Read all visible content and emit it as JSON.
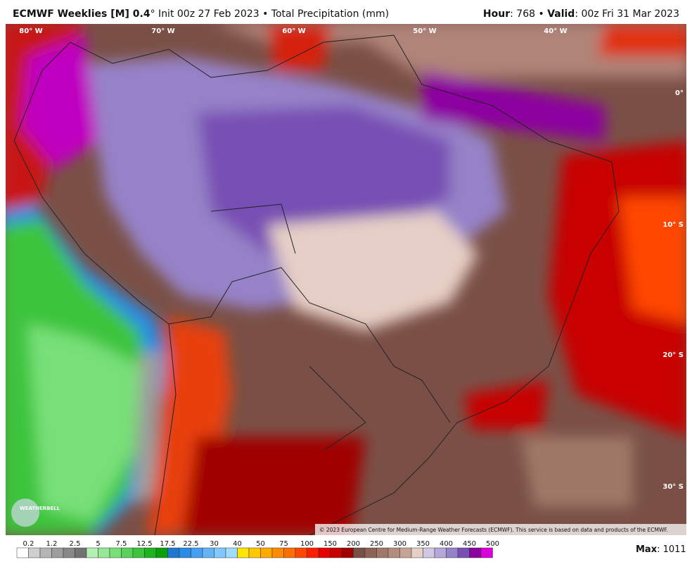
{
  "header": {
    "title_bold": "ECMWF Weeklies [M] 0.4",
    "title_rest": "° Init 00z 27 Feb 2023 • Total Precipitation (mm)",
    "hour_label": "Hour",
    "hour_value": ": 768 • ",
    "valid_label": "Valid",
    "valid_value": ": 00z Fri 31 Mar 2023"
  },
  "map": {
    "lon_labels": [
      "80° W",
      "70° W",
      "60° W",
      "50° W",
      "40° W"
    ],
    "lat_labels": [
      "0°",
      "10° S",
      "20° S",
      "30° S"
    ],
    "copyright": "© 2023 European Centre for Medium-Range Weather Forecasts (ECMWF). This service is based on data and products of the ECMWF.",
    "logo": "WEATHERBELL"
  },
  "colorbar": {
    "labels": [
      0.2,
      1.2,
      2.5,
      5,
      7.5,
      12.5,
      17.5,
      22.5,
      30,
      40,
      50,
      75,
      100,
      150,
      200,
      250,
      300,
      350,
      400,
      450,
      500
    ],
    "colors": [
      "#ffffff",
      "#cfcfcf",
      "#b5b5b5",
      "#9e9e9e",
      "#888888",
      "#737373",
      "#b4f0b4",
      "#96e896",
      "#78e078",
      "#5ad25a",
      "#3cc43c",
      "#1eb41e",
      "#0aa00a",
      "#1e78d2",
      "#2a8ce6",
      "#46a0f0",
      "#64b4f5",
      "#82c8fa",
      "#a0dcff",
      "#ffe600",
      "#ffc800",
      "#ffaa00",
      "#ff8c00",
      "#ff6e00",
      "#ff4600",
      "#ff1e00",
      "#e60000",
      "#c80000",
      "#a00000",
      "#785046",
      "#8c6456",
      "#a07868",
      "#b48c7c",
      "#c8a496",
      "#e6cfc6",
      "#d2c8e6",
      "#b4a8d8",
      "#9682c8",
      "#7850b4",
      "#8c00a0",
      "#dc00dc"
    ]
  },
  "footer": {
    "max_label": "Max",
    "max_value": ": 1011"
  }
}
